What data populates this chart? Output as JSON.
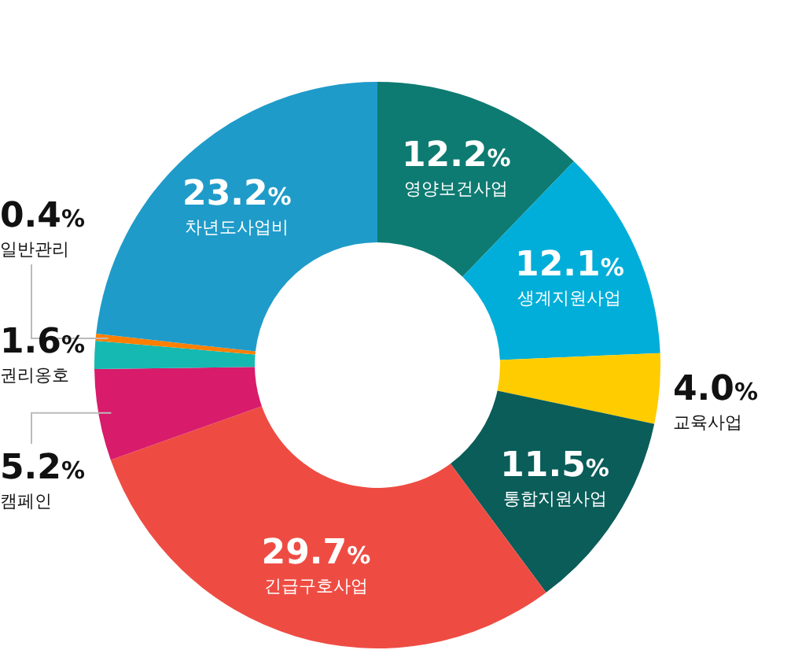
{
  "chart_data": {
    "type": "donut",
    "categories": [
      "영양보건사업",
      "생계지원사업",
      "교육사업",
      "통합지원사업",
      "긴급구호사업",
      "캠페인",
      "권리옹호",
      "일반관리",
      "차년도사업비"
    ],
    "values": [
      12.2,
      12.1,
      4.0,
      11.5,
      29.7,
      5.2,
      1.6,
      0.4,
      23.2
    ],
    "value_labels": [
      "12.2%",
      "12.1%",
      "4.0%",
      "11.5%",
      "29.7%",
      "5.2%",
      "1.6%",
      "0.4%",
      "23.2%"
    ],
    "colors": [
      "#0e7b72",
      "#00aed9",
      "#ffcc00",
      "#0a5d59",
      "#ee4c43",
      "#d81b6b",
      "#15b9b1",
      "#ff7f00",
      "#1f9bc9"
    ]
  }
}
